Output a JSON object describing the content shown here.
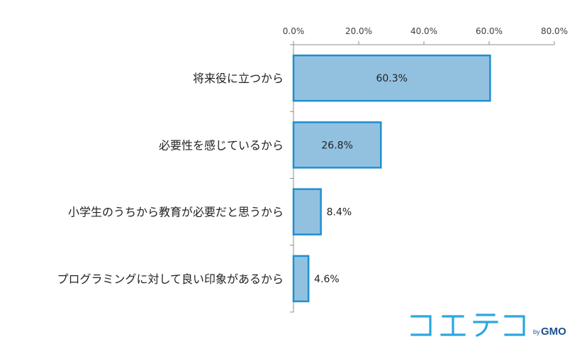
{
  "chart_data": {
    "type": "bar",
    "orientation": "horizontal",
    "categories": [
      "将来役に立つから",
      "必要性を感じているから",
      "小学生のうちから教育が必要だと思うから",
      "プログラミングに対して良い印象があるから"
    ],
    "values": [
      60.3,
      26.8,
      8.4,
      4.6
    ],
    "data_labels": [
      "60.3%",
      "26.8%",
      "8.4%",
      "4.6%"
    ],
    "xlim": [
      0,
      80
    ],
    "x_ticks": [
      0,
      20,
      40,
      60,
      80
    ],
    "x_tick_labels": [
      "0.0%",
      "20.0%",
      "40.0%",
      "60.0%",
      "80.0%"
    ],
    "x_axis_position": "top",
    "grid": false,
    "legend": "none",
    "bar_fill": "#92c1e0",
    "bar_stroke": "#1f8fd0"
  },
  "logo": {
    "mark": "コエテコ",
    "by": "by",
    "brand": "GMO",
    "mark_color": "#2aa7df",
    "brand_color": "#1d4f91"
  }
}
